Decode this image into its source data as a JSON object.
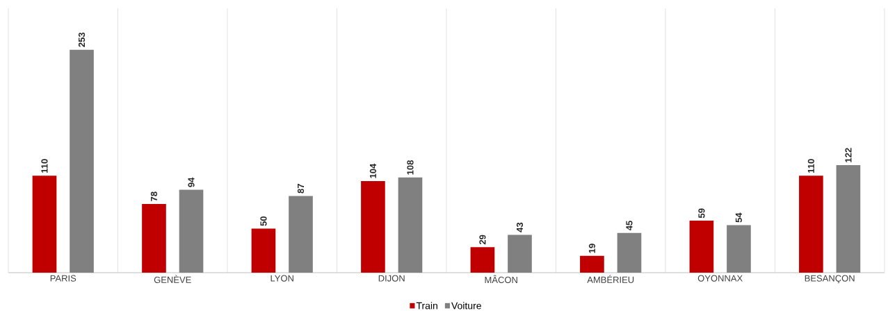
{
  "chart_data": {
    "type": "bar",
    "categories": [
      "PARIS",
      "GENÈVE",
      "LYON",
      "DIJON",
      "MÂCON",
      "AMBÉRIEU",
      "OYONNAX",
      "BESANÇON"
    ],
    "series": [
      {
        "name": "Train",
        "color": "#c00000",
        "values": [
          110,
          78,
          50,
          104,
          29,
          19,
          59,
          110
        ]
      },
      {
        "name": "Voiture",
        "color": "#808080",
        "values": [
          253,
          94,
          87,
          108,
          43,
          45,
          54,
          122
        ]
      }
    ],
    "ylim": [
      0,
      300
    ],
    "tick_labels": "x",
    "data_labels": true,
    "grid": "x",
    "legend": "bottom"
  }
}
